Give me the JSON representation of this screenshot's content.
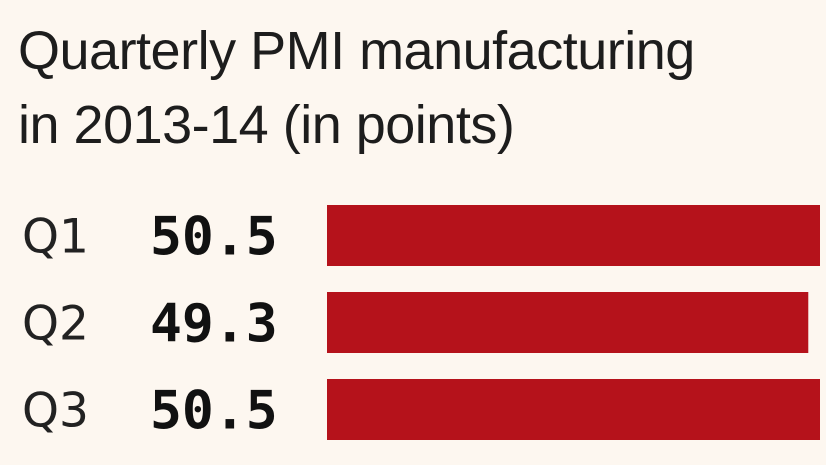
{
  "chart_data": {
    "type": "bar",
    "orientation": "horizontal",
    "title_lines": [
      "Quarterly PMI manufacturing",
      "in 2013-14 (in points)"
    ],
    "categories": [
      "Q1",
      "Q2",
      "Q3"
    ],
    "values": [
      50.5,
      49.3,
      50.5
    ],
    "value_labels": [
      "50.5",
      "49.3",
      "50.5"
    ],
    "unit": "points",
    "bar_color": "#b5121b",
    "xlim": [
      0,
      50.5
    ],
    "xlabel": "",
    "ylabel": "",
    "legend": "none",
    "grid": false
  }
}
